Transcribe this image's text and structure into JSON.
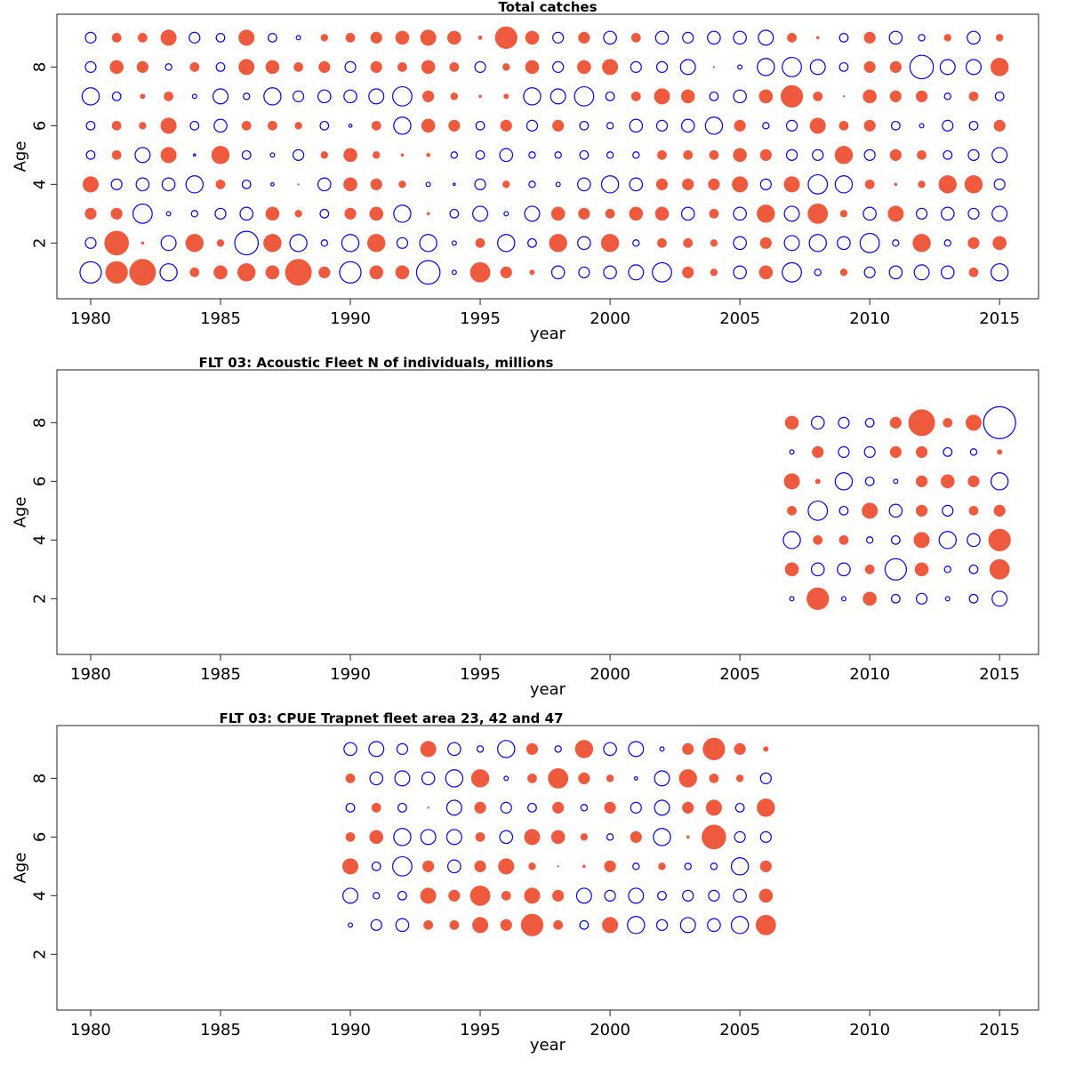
{
  "colors": {
    "positive": "#EE5A3E",
    "negative": "#0000EE",
    "frame": "#222222"
  },
  "chart_data": [
    {
      "type": "bubble",
      "title": "Total catches",
      "xlabel": "year",
      "ylabel": "Age",
      "xlim": [
        1978.7,
        2016.5
      ],
      "ylim": [
        0.1,
        9.8
      ],
      "x_ticks": [
        1980,
        1985,
        1990,
        1995,
        2000,
        2005,
        2010,
        2015
      ],
      "y_ticks": [
        2,
        4,
        6,
        8
      ],
      "years": [
        1980,
        1981,
        1982,
        1983,
        1984,
        1985,
        1986,
        1987,
        1988,
        1989,
        1990,
        1991,
        1992,
        1993,
        1994,
        1995,
        1996,
        1997,
        1998,
        1999,
        2000,
        2001,
        2002,
        2003,
        2004,
        2005,
        2006,
        2007,
        2008,
        2009,
        2010,
        2011,
        2012,
        2013,
        2014,
        2015
      ],
      "ages": [
        1,
        2,
        3,
        4,
        5,
        6,
        7,
        8,
        9
      ],
      "values": [
        [
          -1.0,
          1.0,
          1.2,
          -0.8,
          0.4,
          0.6,
          0.8,
          0.6,
          1.2,
          0.5,
          -1.0,
          0.6,
          0.6,
          -1.1,
          -0.2,
          0.9,
          0.5,
          0.2,
          -0.6,
          -0.5,
          -0.6,
          -0.7,
          -0.9,
          0.5,
          0.3,
          -0.6,
          0.6,
          -0.9,
          -0.3,
          0.3,
          -0.5,
          -0.6,
          -0.7,
          -0.6,
          0.4,
          -0.8
        ],
        [
          -0.5,
          1.1,
          0.1,
          -0.7,
          0.8,
          0.3,
          -1.1,
          0.8,
          -0.8,
          -0.3,
          -0.8,
          0.8,
          -0.5,
          -0.8,
          -0.2,
          0.4,
          -0.8,
          -0.4,
          0.8,
          -0.6,
          0.8,
          -0.3,
          0.4,
          0.4,
          0.3,
          -0.6,
          0.5,
          -0.7,
          -0.8,
          -0.6,
          -0.9,
          -0.3,
          0.8,
          -0.3,
          0.5,
          0.6
        ],
        [
          0.5,
          0.5,
          -0.9,
          -0.2,
          -0.3,
          -0.5,
          -0.6,
          0.6,
          0.3,
          -0.4,
          0.5,
          0.6,
          -0.8,
          0.1,
          -0.4,
          -0.7,
          -0.2,
          -0.7,
          0.6,
          0.5,
          0.4,
          0.6,
          0.6,
          -0.6,
          0.4,
          -0.6,
          0.8,
          -0.7,
          0.9,
          0.3,
          -0.6,
          0.7,
          -0.5,
          -0.6,
          -0.5,
          -0.7
        ],
        [
          0.7,
          -0.5,
          -0.6,
          -0.6,
          -0.8,
          0.4,
          -0.4,
          -0.15,
          0.05,
          -0.6,
          0.6,
          0.5,
          0.3,
          -0.2,
          -0.1,
          -0.5,
          0.3,
          -0.3,
          -0.2,
          -0.6,
          -0.8,
          -0.6,
          0.5,
          0.5,
          0.5,
          0.7,
          -0.5,
          0.7,
          -0.9,
          -0.8,
          0.4,
          0.1,
          0.3,
          0.8,
          0.8,
          -0.5
        ],
        [
          -0.4,
          0.4,
          -0.7,
          0.7,
          -0.1,
          0.8,
          -0.4,
          -0.2,
          -0.5,
          0.3,
          0.6,
          0.3,
          0.1,
          0.15,
          -0.3,
          -0.4,
          -0.6,
          -0.3,
          -0.3,
          -0.4,
          -0.3,
          -0.3,
          0.4,
          0.4,
          0.4,
          0.6,
          0.5,
          -0.5,
          -0.5,
          0.8,
          -0.5,
          0.5,
          0.4,
          -0.4,
          -0.5,
          -0.7
        ],
        [
          -0.4,
          0.4,
          0.3,
          0.7,
          -0.4,
          -0.6,
          0.4,
          0.4,
          0.3,
          -0.4,
          -0.15,
          0.4,
          -0.8,
          0.6,
          0.5,
          -0.4,
          0.5,
          -0.5,
          0.5,
          -0.4,
          -0.3,
          -0.6,
          -0.5,
          -0.6,
          -0.8,
          0.5,
          -0.3,
          -0.5,
          0.7,
          0.4,
          0.5,
          -0.4,
          -0.2,
          -0.5,
          -0.4,
          0.5
        ],
        [
          -0.8,
          -0.4,
          0.2,
          0.4,
          -0.2,
          -0.7,
          -0.3,
          -0.8,
          -0.5,
          -0.6,
          -0.6,
          -0.7,
          -0.9,
          0.5,
          0.3,
          0.1,
          0.2,
          -0.8,
          -0.7,
          -0.9,
          -0.4,
          0.4,
          0.7,
          0.6,
          -0.4,
          -0.6,
          0.6,
          1.0,
          0.4,
          0.05,
          0.6,
          0.5,
          0.5,
          -0.3,
          0.4,
          -0.4
        ],
        [
          -0.5,
          0.6,
          0.5,
          -0.3,
          0.4,
          -0.4,
          0.7,
          0.6,
          0.4,
          0.5,
          -0.5,
          0.5,
          0.4,
          0.6,
          0.4,
          -0.5,
          0.3,
          0.6,
          -0.5,
          0.6,
          0.7,
          -0.5,
          -0.5,
          -0.7,
          0.05,
          -0.2,
          -0.8,
          -0.9,
          -0.7,
          -0.4,
          0.5,
          0.5,
          -1.1,
          -0.7,
          -0.7,
          0.8
        ],
        [
          -0.5,
          0.4,
          0.4,
          0.7,
          -0.5,
          -0.4,
          0.7,
          -0.4,
          -0.2,
          0.3,
          0.4,
          0.5,
          0.6,
          0.7,
          0.6,
          0.15,
          1.0,
          0.6,
          -0.5,
          0.5,
          -0.6,
          0.4,
          -0.6,
          -0.5,
          -0.6,
          -0.6,
          -0.7,
          0.4,
          0.1,
          -0.4,
          0.5,
          -0.6,
          -0.3,
          0.3,
          -0.6,
          0.3
        ]
      ]
    },
    {
      "type": "bubble",
      "title": "FLT 03: Acoustic Fleet   N of individuals, millions",
      "xlabel": "year",
      "ylabel": "Age",
      "xlim": [
        1978.7,
        2016.5
      ],
      "ylim": [
        0.1,
        9.8
      ],
      "x_ticks": [
        1980,
        1985,
        1990,
        1995,
        2000,
        2005,
        2010,
        2015
      ],
      "y_ticks": [
        2,
        4,
        6,
        8
      ],
      "years": [
        2007,
        2008,
        2009,
        2010,
        2011,
        2012,
        2013,
        2014,
        2015
      ],
      "ages": [
        2,
        3,
        4,
        5,
        6,
        7,
        8
      ],
      "values": [
        [
          -0.2,
          1.0,
          -0.2,
          0.6,
          -0.4,
          -0.5,
          -0.2,
          -0.4,
          -0.7
        ],
        [
          0.6,
          -0.6,
          -0.6,
          0.4,
          -1.0,
          0.6,
          -0.3,
          -0.4,
          0.9
        ],
        [
          -0.8,
          0.4,
          0.4,
          -0.3,
          -0.4,
          0.7,
          -0.8,
          -0.6,
          1.0
        ],
        [
          0.4,
          -0.9,
          -0.4,
          0.7,
          -0.6,
          0.5,
          -0.5,
          0.4,
          0.5
        ],
        [
          0.7,
          0.2,
          -0.8,
          -0.4,
          -0.2,
          0.5,
          0.6,
          0.5,
          -0.8
        ],
        [
          -0.2,
          0.5,
          -0.5,
          -0.5,
          0.5,
          0.5,
          -0.4,
          -0.3,
          0.2
        ],
        [
          0.6,
          -0.6,
          -0.5,
          -0.4,
          0.5,
          1.2,
          0.4,
          0.7,
          -1.5
        ]
      ]
    },
    {
      "type": "bubble",
      "title": "FLT 03: CPUE Trapnet fleet area 23, 42 and 47",
      "xlabel": "year",
      "ylabel": "Age",
      "xlim": [
        1978.7,
        2016.5
      ],
      "ylim": [
        0.1,
        9.8
      ],
      "x_ticks": [
        1980,
        1985,
        1990,
        1995,
        2000,
        2005,
        2010,
        2015
      ],
      "y_ticks": [
        2,
        4,
        6,
        8
      ],
      "years": [
        1990,
        1991,
        1992,
        1993,
        1994,
        1995,
        1996,
        1997,
        1998,
        1999,
        2000,
        2001,
        2002,
        2003,
        2004,
        2005,
        2006
      ],
      "ages": [
        3,
        4,
        5,
        6,
        7,
        8,
        9
      ],
      "values": [
        [
          -0.2,
          -0.5,
          -0.6,
          0.4,
          0.4,
          0.7,
          0.5,
          1.0,
          0.4,
          -0.4,
          0.7,
          -0.8,
          -0.5,
          -0.7,
          -0.6,
          -0.8,
          0.9
        ],
        [
          -0.7,
          -0.3,
          -0.4,
          0.7,
          0.5,
          0.9,
          0.4,
          0.7,
          0.5,
          -0.7,
          -0.5,
          -0.7,
          -0.4,
          -0.5,
          -0.5,
          -0.6,
          0.6
        ],
        [
          0.7,
          -0.4,
          -0.9,
          0.5,
          -0.6,
          0.5,
          0.7,
          0.3,
          0.05,
          0.1,
          0.5,
          -0.3,
          0.3,
          -0.3,
          -0.3,
          -0.8,
          0.5
        ],
        [
          0.4,
          0.6,
          -0.8,
          -0.7,
          -0.7,
          0.4,
          -0.6,
          0.7,
          0.6,
          0.3,
          -0.3,
          0.5,
          -0.8,
          0.1,
          1.1,
          -0.5,
          -0.5
        ],
        [
          -0.4,
          0.4,
          -0.4,
          0.05,
          -0.7,
          0.5,
          -0.5,
          -0.4,
          0.5,
          -0.3,
          0.5,
          -0.5,
          -0.7,
          0.5,
          0.7,
          -0.4,
          0.8
        ],
        [
          0.4,
          -0.6,
          -0.7,
          -0.6,
          -0.8,
          0.8,
          -0.2,
          0.4,
          0.9,
          0.5,
          0.3,
          -0.15,
          -0.7,
          0.8,
          0.4,
          0.3,
          -0.5
        ],
        [
          -0.6,
          -0.7,
          -0.5,
          0.7,
          -0.6,
          -0.3,
          -0.8,
          0.5,
          -0.3,
          0.8,
          -0.6,
          -0.7,
          -0.2,
          0.5,
          1.0,
          0.5,
          0.2
        ]
      ]
    }
  ]
}
